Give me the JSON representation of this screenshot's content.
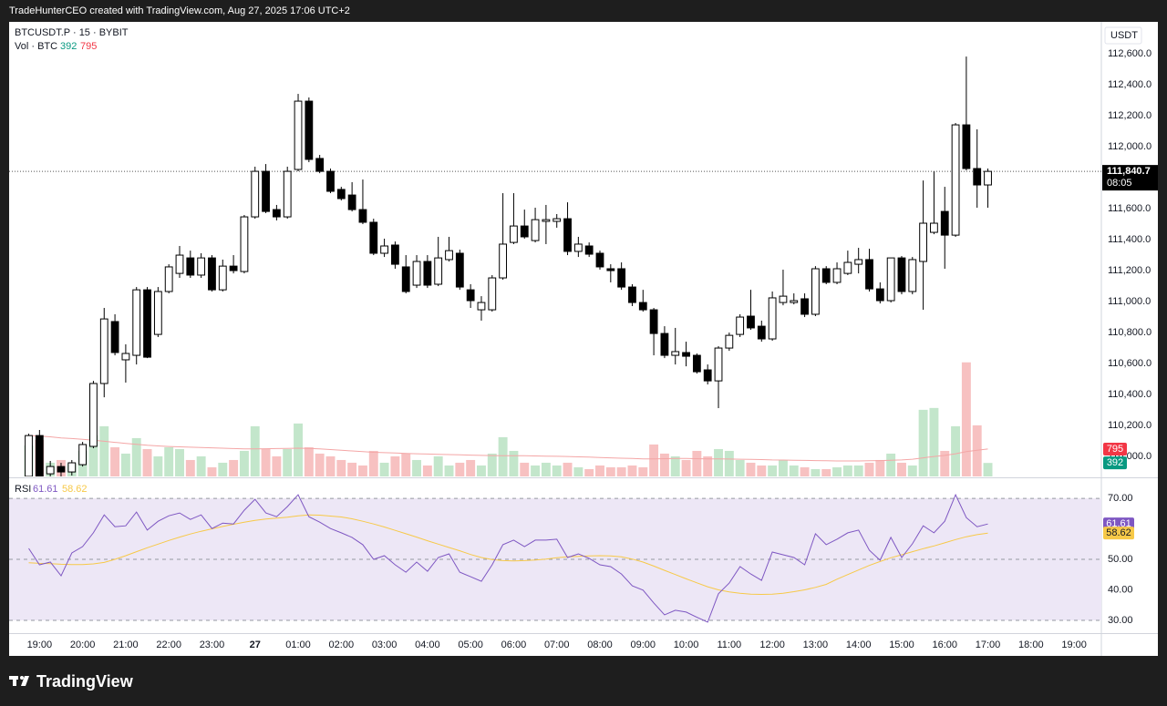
{
  "header": "TradeHunterCEO created with TradingView.com, Aug 27, 2025 17:06 UTC+2",
  "brand": "TradingView",
  "chart_data": [
    {
      "type": "candlestick",
      "title": "BTCUSDT.P · 15 · BYBIT",
      "axis_label": "USDT",
      "up_color": "#ffffff",
      "down_color": "#000000",
      "wick_color": "#000000",
      "xlim": [
        -1.82,
        99.53
      ],
      "xticks": [
        {
          "value": 1,
          "label": "19:00"
        },
        {
          "value": 5,
          "label": "20:00"
        },
        {
          "value": 9,
          "label": "21:00"
        },
        {
          "value": 13,
          "label": "22:00"
        },
        {
          "value": 17,
          "label": "23:00"
        },
        {
          "value": 21,
          "label": "27",
          "bold": true
        },
        {
          "value": 25,
          "label": "01:00"
        },
        {
          "value": 29,
          "label": "02:00"
        },
        {
          "value": 33,
          "label": "03:00"
        },
        {
          "value": 37,
          "label": "04:00"
        },
        {
          "value": 41,
          "label": "05:00"
        },
        {
          "value": 45,
          "label": "06:00"
        },
        {
          "value": 49,
          "label": "07:00"
        },
        {
          "value": 53,
          "label": "08:00"
        },
        {
          "value": 57,
          "label": "09:00"
        },
        {
          "value": 61,
          "label": "10:00"
        },
        {
          "value": 65,
          "label": "11:00"
        },
        {
          "value": 69,
          "label": "12:00"
        },
        {
          "value": 73,
          "label": "13:00"
        },
        {
          "value": 77,
          "label": "14:00"
        },
        {
          "value": 81,
          "label": "15:00"
        },
        {
          "value": 85,
          "label": "16:00"
        },
        {
          "value": 89,
          "label": "17:00"
        },
        {
          "value": 93,
          "label": "18:00"
        },
        {
          "value": 97,
          "label": "19:00"
        }
      ],
      "ylim": [
        109871,
        112806
      ],
      "yticks": [
        {
          "value": 110000,
          "label": "110,000.0"
        },
        {
          "value": 110200,
          "label": "110,200.0"
        },
        {
          "value": 110400,
          "label": "110,400.0"
        },
        {
          "value": 110600,
          "label": "110,600.0"
        },
        {
          "value": 110800,
          "label": "110,800.0"
        },
        {
          "value": 111000,
          "label": "111,000.0"
        },
        {
          "value": 111200,
          "label": "111,200.0"
        },
        {
          "value": 111400,
          "label": "111,400.0"
        },
        {
          "value": 111600,
          "label": "111,600.0"
        },
        {
          "value": 111800,
          "label": "111,800.0"
        },
        {
          "value": 112000,
          "label": "112,000.0"
        },
        {
          "value": 112200,
          "label": "112,200.0"
        },
        {
          "value": 112400,
          "label": "112,400.0"
        },
        {
          "value": 112600,
          "label": "112,600.0"
        }
      ],
      "grid": false,
      "last_price": {
        "value": 111840.7,
        "label": "111,840.7"
      },
      "countdown": "08:05",
      "open": [
        109871,
        110135,
        109888,
        109935,
        109900,
        109947,
        110065,
        110471,
        110871,
        110624,
        110653,
        111076,
        110788,
        111065,
        111182,
        111282,
        111171,
        111282,
        111076,
        111229,
        111194,
        111547,
        111841,
        111594,
        111547,
        111853,
        112294,
        111924,
        111841,
        111724,
        111688,
        111594,
        111512,
        111312,
        111365,
        111224,
        111106,
        111259,
        111112,
        111271,
        111312,
        111076,
        110947,
        110947,
        111153,
        111382,
        111488,
        111394,
        111518,
        111518,
        111535,
        111324,
        111359,
        111312,
        111212,
        111212,
        111094,
        110994,
        110947,
        110794,
        110653,
        110671,
        110653,
        110559,
        110488,
        110700,
        110788,
        110906,
        110841,
        110759,
        110994,
        110994,
        111018,
        110918,
        111212,
        111124,
        111182,
        111241,
        111271,
        111082,
        111006,
        111282,
        111065,
        111259,
        111447,
        111582,
        111429,
        112141,
        111859,
        111753
      ],
      "high": [
        110147,
        110171,
        109971,
        109959,
        109977,
        110094,
        110488,
        110959,
        110918,
        110724,
        111094,
        111094,
        111094,
        111241,
        111359,
        111329,
        111312,
        111300,
        111271,
        111300,
        111559,
        111871,
        111888,
        111624,
        111871,
        112341,
        112318,
        111947,
        111859,
        111741,
        111771,
        111788,
        111535,
        111406,
        111388,
        111300,
        111300,
        111300,
        111418,
        111418,
        111335,
        111112,
        111035,
        111171,
        111700,
        111700,
        111594,
        111606,
        111624,
        111565,
        111641,
        111418,
        111382,
        111329,
        111241,
        111253,
        111112,
        111076,
        110959,
        110841,
        110830,
        110741,
        110665,
        110594,
        110712,
        110800,
        110918,
        111076,
        110877,
        111065,
        111206,
        111053,
        111053,
        111229,
        111229,
        111253,
        111329,
        111347,
        111341,
        111124,
        111282,
        111294,
        111288,
        111782,
        111841,
        111741,
        112153,
        112582,
        112112,
        111859
      ],
      "low": [
        109841,
        109841,
        109853,
        109865,
        109877,
        109935,
        110053,
        110382,
        110653,
        110477,
        110594,
        110635,
        110771,
        111053,
        111153,
        111153,
        111153,
        111065,
        111065,
        111182,
        111182,
        111535,
        111571,
        111524,
        111535,
        111841,
        111900,
        111829,
        111700,
        111653,
        111582,
        111500,
        111300,
        111288,
        111212,
        111053,
        111088,
        111088,
        111100,
        111259,
        111076,
        110959,
        110877,
        110935,
        111141,
        111371,
        111406,
        111382,
        111371,
        111477,
        111300,
        111288,
        111288,
        111206,
        111124,
        111076,
        110971,
        110935,
        110653,
        110635,
        110594,
        110582,
        110535,
        110465,
        110312,
        110682,
        110771,
        110818,
        110741,
        110747,
        110976,
        110982,
        110900,
        110906,
        111112,
        111112,
        111171,
        111182,
        111065,
        110988,
        110994,
        111047,
        111047,
        110947,
        111435,
        111212,
        111418,
        111847,
        111606,
        111606
      ],
      "close": [
        110135,
        109871,
        109935,
        109900,
        109959,
        110077,
        110471,
        110888,
        110671,
        110665,
        111076,
        110641,
        111065,
        111224,
        111300,
        111171,
        111282,
        111076,
        111229,
        111200,
        111547,
        111841,
        111582,
        111547,
        111841,
        112294,
        111918,
        111841,
        111712,
        111665,
        111594,
        111512,
        111312,
        111359,
        111241,
        111065,
        111259,
        111106,
        111282,
        111329,
        111094,
        111006,
        110994,
        111153,
        111371,
        111488,
        111418,
        111529,
        111529,
        111535,
        111324,
        111371,
        111306,
        111224,
        111200,
        111094,
        110994,
        110947,
        110794,
        110653,
        110677,
        110647,
        110547,
        110488,
        110700,
        110782,
        110900,
        110830,
        110759,
        111024,
        111035,
        111006,
        110918,
        111212,
        111124,
        111212,
        111253,
        111271,
        111082,
        111006,
        111282,
        111065,
        111271,
        111506,
        111506,
        111429,
        112141,
        111859,
        111753,
        111840.7
      ]
    },
    {
      "type": "bar",
      "title": "Vol · BTC",
      "ylim": [
        0,
        13200
      ],
      "series": [
        {
          "type": "bar",
          "up_color": "#c3e6cb",
          "down_color": "#f7c1c1",
          "label_up_color": "#089981",
          "label_down_color": "#f23645",
          "values": [
            901,
            1060,
            398,
            477,
            371,
            742,
            1193,
            1458,
            848,
            663,
            1113,
            795,
            583,
            848,
            795,
            477,
            583,
            265,
            398,
            477,
            742,
            1458,
            795,
            583,
            795,
            1537,
            848,
            663,
            583,
            477,
            398,
            318,
            742,
            398,
            583,
            663,
            477,
            318,
            583,
            318,
            398,
            477,
            318,
            663,
            1140,
            742,
            398,
            318,
            398,
            318,
            398,
            265,
            212,
            318,
            265,
            265,
            318,
            265,
            928,
            663,
            583,
            477,
            742,
            583,
            795,
            742,
            477,
            398,
            318,
            318,
            477,
            318,
            265,
            212,
            212,
            265,
            318,
            318,
            398,
            477,
            663,
            398,
            318,
            1935,
            1988,
            742,
            1458,
            3313,
            1484,
            392
          ]
        },
        {
          "type": "line",
          "color": "#f4a6a6",
          "label_color": "#f23645",
          "values": [
            1190,
            1170,
            1150,
            1120,
            1100,
            1080,
            1050,
            1020,
            990,
            960,
            930,
            905,
            885,
            870,
            860,
            850,
            840,
            830,
            820,
            810,
            800,
            800,
            805,
            810,
            815,
            820,
            815,
            800,
            780,
            760,
            740,
            720,
            700,
            690,
            680,
            670,
            660,
            650,
            640,
            635,
            630,
            620,
            610,
            605,
            600,
            600,
            600,
            595,
            590,
            585,
            580,
            570,
            560,
            550,
            540,
            530,
            520,
            510,
            510,
            515,
            520,
            520,
            515,
            510,
            510,
            505,
            500,
            495,
            490,
            480,
            475,
            470,
            465,
            460,
            455,
            450,
            450,
            450,
            455,
            460,
            470,
            480,
            500,
            540,
            580,
            610,
            660,
            720,
            760,
            795
          ]
        }
      ]
    },
    {
      "type": "line",
      "title": "RSI",
      "ylim": [
        25.8,
        76
      ],
      "yticks": [
        {
          "value": 30,
          "label": "30.00"
        },
        {
          "value": 40,
          "label": "40.00"
        },
        {
          "value": 50,
          "label": "50.00"
        },
        {
          "value": 70,
          "label": "70.00"
        }
      ],
      "levels": [
        30,
        50,
        70
      ],
      "band_color": "#ede7f6",
      "series": [
        {
          "color": "#7e57c2",
          "label_text_color": "#ffffff",
          "values": [
            53.6,
            48.2,
            49.1,
            44.6,
            52.1,
            54.2,
            58.7,
            64.6,
            60.7,
            61.0,
            65.5,
            59.6,
            62.5,
            64.3,
            65.2,
            63.1,
            64.6,
            60.1,
            61.9,
            61.6,
            66.1,
            69.7,
            65.2,
            64.0,
            67.3,
            71.2,
            64.0,
            62.2,
            60.1,
            58.7,
            57.2,
            54.8,
            50.0,
            51.2,
            48.2,
            45.8,
            49.1,
            46.1,
            50.6,
            51.8,
            45.8,
            44.3,
            42.8,
            48.2,
            54.8,
            56.3,
            54.2,
            56.3,
            56.3,
            56.6,
            50.6,
            51.8,
            50.3,
            48.2,
            47.6,
            45.2,
            41.3,
            39.9,
            35.7,
            31.8,
            33.3,
            32.7,
            31.0,
            29.4,
            38.7,
            42.2,
            47.6,
            45.2,
            43.1,
            52.4,
            51.5,
            50.6,
            48.2,
            58.4,
            54.8,
            56.6,
            58.7,
            59.6,
            53.0,
            49.7,
            57.2,
            50.6,
            55.1,
            61.0,
            58.7,
            62.5,
            71.2,
            63.7,
            60.7,
            61.61
          ]
        },
        {
          "color": "#f7c948",
          "label_text_color": "#131722",
          "values": [
            48.9,
            48.7,
            48.6,
            48.4,
            48.3,
            48.3,
            48.5,
            49.0,
            50.0,
            51.2,
            52.5,
            53.8,
            55.0,
            56.2,
            57.3,
            58.3,
            59.2,
            60.0,
            60.8,
            61.5,
            62.2,
            62.8,
            63.2,
            63.5,
            63.8,
            64.3,
            64.6,
            64.5,
            64.2,
            63.9,
            63.3,
            62.5,
            61.6,
            60.6,
            59.5,
            58.4,
            57.3,
            56.1,
            55.0,
            53.9,
            52.8,
            51.6,
            50.6,
            49.9,
            49.6,
            49.5,
            49.6,
            49.8,
            50.1,
            50.5,
            50.8,
            51.0,
            51.1,
            51.2,
            51.1,
            50.8,
            50.1,
            49.1,
            47.8,
            46.4,
            45.0,
            43.6,
            42.3,
            41.0,
            40.0,
            39.3,
            38.9,
            38.6,
            38.5,
            38.6,
            38.9,
            39.4,
            40.0,
            40.8,
            41.8,
            43.5,
            45.0,
            46.5,
            48.0,
            49.3,
            50.5,
            51.5,
            52.5,
            53.5,
            54.4,
            55.4,
            56.5,
            57.4,
            58.1,
            58.62
          ]
        }
      ]
    }
  ]
}
